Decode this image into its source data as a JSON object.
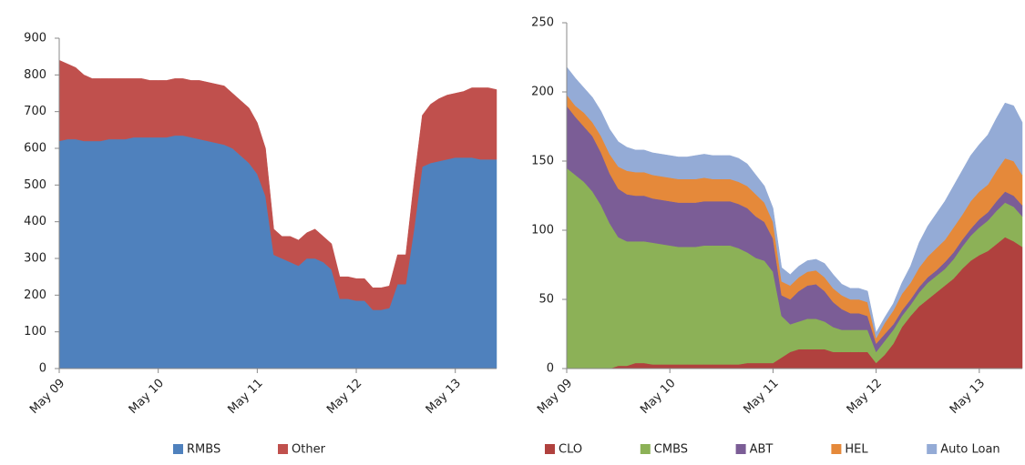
{
  "chart_data": [
    {
      "type": "stacked-area",
      "categories": [
        "May 09",
        null,
        null,
        null,
        null,
        null,
        null,
        null,
        null,
        null,
        null,
        null,
        "May 10",
        null,
        null,
        null,
        null,
        null,
        null,
        null,
        null,
        null,
        null,
        null,
        "May 11",
        null,
        null,
        null,
        null,
        null,
        null,
        null,
        null,
        null,
        null,
        null,
        "May 12",
        null,
        null,
        null,
        null,
        null,
        null,
        null,
        null,
        null,
        null,
        null,
        "May 13",
        null,
        null,
        null,
        null,
        null
      ],
      "ylim": [
        0,
        900
      ],
      "yticks": [
        0,
        100,
        200,
        300,
        400,
        500,
        600,
        700,
        800,
        900
      ],
      "legend": "bottom",
      "series": [
        {
          "name": "RMBS",
          "color": "#4f81bd",
          "values": [
            620,
            625,
            625,
            620,
            620,
            620,
            625,
            625,
            625,
            630,
            630,
            630,
            630,
            630,
            635,
            635,
            630,
            625,
            620,
            615,
            610,
            600,
            580,
            560,
            530,
            470,
            310,
            300,
            290,
            280,
            300,
            300,
            290,
            270,
            190,
            190,
            185,
            185,
            160,
            160,
            165,
            230,
            230,
            380,
            550,
            560,
            565,
            570,
            575,
            575,
            575,
            570,
            570,
            570
          ]
        },
        {
          "name": "Other",
          "color": "#c0504d",
          "values": [
            220,
            205,
            195,
            180,
            170,
            170,
            165,
            165,
            165,
            160,
            160,
            155,
            155,
            155,
            155,
            155,
            155,
            160,
            160,
            160,
            160,
            150,
            150,
            150,
            140,
            130,
            70,
            60,
            70,
            70,
            70,
            80,
            70,
            70,
            60,
            60,
            60,
            60,
            60,
            60,
            60,
            80,
            80,
            130,
            140,
            160,
            170,
            175,
            175,
            180,
            190,
            195,
            195,
            190
          ]
        }
      ]
    },
    {
      "type": "stacked-area",
      "categories": [
        "May 09",
        null,
        null,
        null,
        null,
        null,
        null,
        null,
        null,
        null,
        null,
        null,
        "May 10",
        null,
        null,
        null,
        null,
        null,
        null,
        null,
        null,
        null,
        null,
        null,
        "May 11",
        null,
        null,
        null,
        null,
        null,
        null,
        null,
        null,
        null,
        null,
        null,
        "May 12",
        null,
        null,
        null,
        null,
        null,
        null,
        null,
        null,
        null,
        null,
        null,
        "May 13",
        null,
        null,
        null,
        null,
        null
      ],
      "ylim": [
        0,
        250
      ],
      "yticks": [
        0,
        50,
        100,
        150,
        200,
        250
      ],
      "legend": "bottom",
      "series": [
        {
          "name": "CLO",
          "color": "#b0413e",
          "values": [
            0,
            0,
            0,
            0,
            0,
            0,
            2,
            2,
            4,
            4,
            3,
            3,
            3,
            3,
            3,
            3,
            3,
            3,
            3,
            3,
            3,
            4,
            4,
            4,
            4,
            8,
            12,
            14,
            14,
            14,
            14,
            12,
            12,
            12,
            12,
            12,
            4,
            10,
            18,
            30,
            38,
            45,
            50,
            55,
            60,
            65,
            72,
            78,
            82,
            85,
            90,
            95,
            92,
            88
          ]
        },
        {
          "name": "CMBS",
          "color": "#8cb157",
          "values": [
            145,
            140,
            135,
            128,
            118,
            105,
            93,
            90,
            88,
            88,
            88,
            87,
            86,
            85,
            85,
            85,
            86,
            86,
            86,
            86,
            84,
            80,
            76,
            74,
            66,
            30,
            20,
            20,
            22,
            22,
            20,
            18,
            16,
            16,
            16,
            16,
            8,
            10,
            10,
            8,
            8,
            10,
            12,
            12,
            12,
            14,
            16,
            18,
            20,
            22,
            24,
            25,
            25,
            22
          ]
        },
        {
          "name": "ABT",
          "color": "#7b5d96",
          "values": [
            45,
            42,
            40,
            40,
            38,
            36,
            35,
            34,
            33,
            33,
            32,
            32,
            32,
            32,
            32,
            32,
            32,
            32,
            32,
            32,
            32,
            32,
            30,
            28,
            24,
            15,
            18,
            22,
            24,
            25,
            22,
            18,
            15,
            12,
            12,
            10,
            6,
            5,
            4,
            4,
            4,
            4,
            4,
            4,
            5,
            5,
            5,
            5,
            6,
            6,
            7,
            8,
            8,
            8
          ]
        },
        {
          "name": "HEL",
          "color": "#e5893a",
          "values": [
            8,
            8,
            10,
            10,
            12,
            14,
            16,
            17,
            17,
            17,
            17,
            17,
            17,
            17,
            17,
            17,
            17,
            16,
            16,
            16,
            16,
            16,
            16,
            14,
            12,
            10,
            10,
            10,
            10,
            10,
            10,
            10,
            10,
            10,
            10,
            10,
            4,
            8,
            10,
            12,
            12,
            14,
            15,
            16,
            16,
            18,
            18,
            20,
            20,
            20,
            22,
            24,
            25,
            22
          ]
        },
        {
          "name": "Auto Loan",
          "color": "#94abd6",
          "values": [
            20,
            20,
            18,
            18,
            18,
            18,
            18,
            17,
            16,
            16,
            16,
            16,
            16,
            16,
            16,
            17,
            17,
            17,
            17,
            17,
            17,
            16,
            14,
            12,
            10,
            10,
            8,
            8,
            8,
            8,
            10,
            10,
            8,
            8,
            8,
            8,
            4,
            4,
            5,
            8,
            12,
            18,
            22,
            25,
            28,
            30,
            32,
            33,
            34,
            36,
            38,
            40,
            40,
            38
          ]
        }
      ]
    }
  ]
}
